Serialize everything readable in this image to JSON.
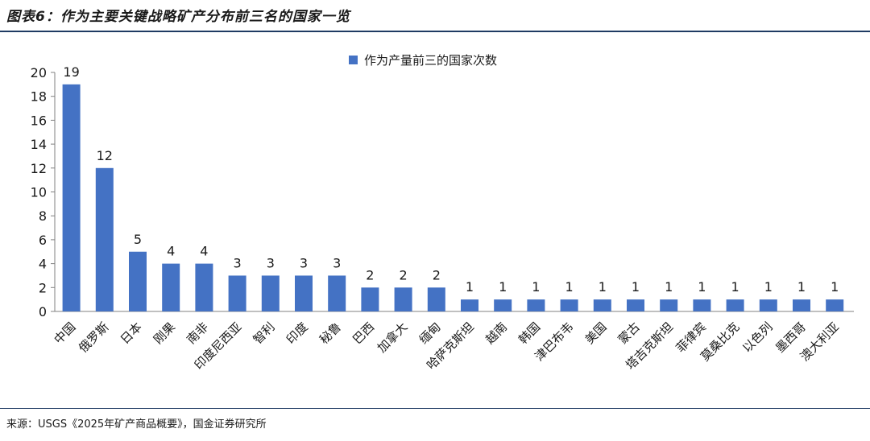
{
  "header": {
    "title": "图表6：作为主要关键战略矿产分布前三名的国家一览"
  },
  "footer": {
    "source": "来源：USGS《2025年矿产商品概要》，国金证券研究所"
  },
  "chart_data": {
    "type": "bar",
    "title": "",
    "xlabel": "",
    "ylabel": "",
    "ylim": [
      0,
      20
    ],
    "yticks": [
      0,
      2,
      4,
      6,
      8,
      10,
      12,
      14,
      16,
      18,
      20
    ],
    "grid": false,
    "legend": "top-center",
    "bar_color": "#4472c4",
    "categories": [
      "中国",
      "俄罗斯",
      "日本",
      "刚果",
      "南非",
      "印度尼西亚",
      "智利",
      "印度",
      "秘鲁",
      "巴西",
      "加拿大",
      "缅甸",
      "哈萨克斯坦",
      "越南",
      "韩国",
      "津巴布韦",
      "美国",
      "蒙古",
      "塔吉克斯坦",
      "菲律宾",
      "莫桑比克",
      "以色列",
      "墨西哥",
      "澳大利亚"
    ],
    "series": [
      {
        "name": "作为产量前三的国家次数",
        "values": [
          19,
          12,
          5,
          4,
          4,
          3,
          3,
          3,
          3,
          2,
          2,
          2,
          1,
          1,
          1,
          1,
          1,
          1,
          1,
          1,
          1,
          1,
          1,
          1
        ]
      }
    ]
  }
}
